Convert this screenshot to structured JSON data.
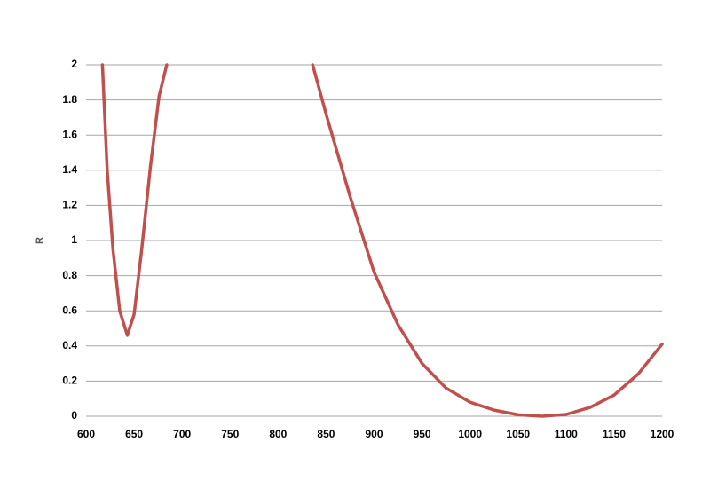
{
  "chart_data": {
    "type": "line",
    "y_label": "R",
    "x": [
      617,
      622,
      628,
      635,
      643,
      650,
      658,
      667,
      676,
      684,
      null,
      836,
      850,
      875,
      900,
      925,
      950,
      975,
      1000,
      1025,
      1050,
      1075,
      1100,
      1125,
      1150,
      1175,
      1200
    ],
    "series": [
      {
        "name": "R",
        "color": "#c0504d",
        "values": [
          2,
          1.4,
          0.95,
          0.6,
          0.46,
          0.58,
          0.95,
          1.42,
          1.82,
          2,
          null,
          2,
          1.72,
          1.25,
          0.82,
          0.52,
          0.3,
          0.16,
          0.08,
          0.035,
          0.008,
          0,
          0.01,
          0.05,
          0.12,
          0.24,
          0.41
        ]
      }
    ],
    "xlim": [
      600,
      1200
    ],
    "xticks": [
      600,
      650,
      700,
      750,
      800,
      850,
      900,
      950,
      1000,
      1050,
      1100,
      1150,
      1200
    ],
    "ylim": [
      0,
      2
    ],
    "yticks": [
      0,
      0.2,
      0.4,
      0.6,
      0.8,
      1,
      1.2,
      1.4,
      1.6,
      1.8,
      2
    ],
    "grid": true
  }
}
